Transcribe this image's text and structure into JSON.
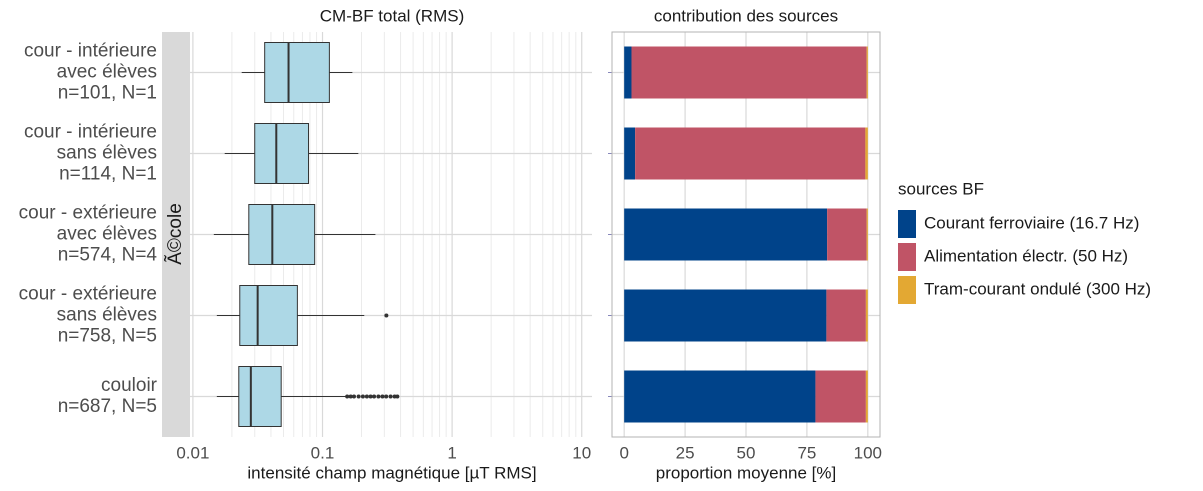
{
  "chart_data": [
    {
      "type": "box",
      "title": "CM-BF total (RMS)",
      "x_label": "intensité champ magnétique [µT RMS]",
      "facet_label": "Ã©cole",
      "categories": [
        [
          "cour - intérieure",
          "avec élèves",
          "n=101, N=1"
        ],
        [
          "cour - intérieure",
          "sans élèves",
          "n=114, N=1"
        ],
        [
          "cour - extérieure",
          "avec élèves",
          "n=574, N=4"
        ],
        [
          "cour - extérieure",
          "sans élèves",
          "n=758, N=5"
        ],
        [
          "couloir",
          "n=687, N=5"
        ]
      ],
      "boxes": [
        {
          "whislo": 0.0238,
          "q1": 0.0358,
          "med": 0.0547,
          "q3": 0.113,
          "whishi": 0.17,
          "fliers": []
        },
        {
          "whislo": 0.0176,
          "q1": 0.03,
          "med": 0.044,
          "q3": 0.078,
          "whishi": 0.189,
          "fliers": []
        },
        {
          "whislo": 0.0145,
          "q1": 0.027,
          "med": 0.041,
          "q3": 0.087,
          "whishi": 0.256,
          "fliers": []
        },
        {
          "whislo": 0.0153,
          "q1": 0.023,
          "med": 0.0316,
          "q3": 0.064,
          "whishi": 0.21,
          "fliers": [
            0.311
          ]
        },
        {
          "whislo": 0.0153,
          "q1": 0.0226,
          "med": 0.028,
          "q3": 0.048,
          "whishi": 0.153,
          "fliers": [
            0.155,
            0.165,
            0.175,
            0.19,
            0.205,
            0.22,
            0.235,
            0.25,
            0.27,
            0.29,
            0.31,
            0.335,
            0.36,
            0.378
          ]
        }
      ],
      "box_color": "#add8e6",
      "log_x": true,
      "grid": true,
      "xlim": [
        0.0095,
        12
      ],
      "xticks": [
        0.01,
        0.1,
        1,
        10
      ],
      "xminor": [
        0.02,
        0.03,
        0.04,
        0.05,
        0.06,
        0.07,
        0.08,
        0.09,
        0.2,
        0.3,
        0.4,
        0.5,
        0.6,
        0.7,
        0.8,
        0.9,
        2,
        3,
        4,
        5,
        6,
        7,
        8,
        9
      ]
    },
    {
      "type": "stacked_bar",
      "title": "contribution des sources",
      "x_label": "proportion moyenne [%]",
      "categories": [
        null,
        null,
        null,
        null,
        null
      ],
      "legend_title": "sources BF",
      "legend": "right",
      "grid": true,
      "series": [
        {
          "name": "Courant ferroviaire (16.7 Hz)",
          "color": "#00438a",
          "values": [
            3,
            4.5,
            83.3,
            83,
            78.5
          ]
        },
        {
          "name": "Alimentation électr. (50 Hz)",
          "color": "#c05466",
          "values": [
            96.5,
            94.5,
            16.2,
            16.2,
            20.7
          ]
        },
        {
          "name": "Tram-courant ondulé (300 Hz)",
          "color": "#e3a833",
          "values": [
            0.5,
            1,
            0.5,
            0.8,
            0.8
          ]
        }
      ],
      "xlim": [
        -5,
        105
      ],
      "xticks": [
        0,
        25,
        50,
        75,
        100
      ]
    }
  ]
}
